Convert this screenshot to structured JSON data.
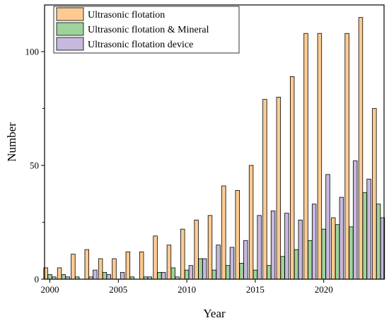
{
  "chart_data": {
    "type": "bar",
    "title": "",
    "xlabel": "Year",
    "ylabel": "Number",
    "categories": [
      2000,
      2001,
      2002,
      2003,
      2004,
      2005,
      2006,
      2007,
      2008,
      2009,
      2010,
      2011,
      2012,
      2013,
      2014,
      2015,
      2016,
      2017,
      2018,
      2019,
      2020,
      2021,
      2022,
      2023,
      2024
    ],
    "x_ticks": [
      "2000",
      "2005",
      "2010",
      "2015",
      "2020"
    ],
    "y_ticks": [
      "0",
      "50",
      "100"
    ],
    "ylim": [
      0,
      120
    ],
    "legend_position": "top-left",
    "grid": false,
    "series": [
      {
        "name": "Ultrasonic  flotation",
        "color": "#FDCB92",
        "values": [
          5,
          5,
          11,
          13,
          9,
          9,
          12,
          12,
          19,
          15,
          22,
          26,
          28,
          41,
          39,
          50,
          79,
          80,
          89,
          108,
          108,
          27,
          108,
          115,
          75
        ]
      },
      {
        "name": "Ultrasonic  flotation & Mineral",
        "color": "#9ED39B",
        "values": [
          2,
          2,
          1,
          1,
          3,
          0,
          1,
          1,
          3,
          5,
          4,
          9,
          4,
          6,
          7,
          4,
          6,
          10,
          13,
          17,
          22,
          24,
          23,
          38,
          33
        ]
      },
      {
        "name": "Ultrasonic  flotation device",
        "color": "#C7B8DD",
        "values": [
          1,
          1,
          0,
          4,
          2,
          3,
          0,
          1,
          3,
          1,
          6,
          9,
          15,
          14,
          17,
          28,
          30,
          29,
          26,
          33,
          46,
          36,
          52,
          44,
          27
        ]
      }
    ]
  }
}
